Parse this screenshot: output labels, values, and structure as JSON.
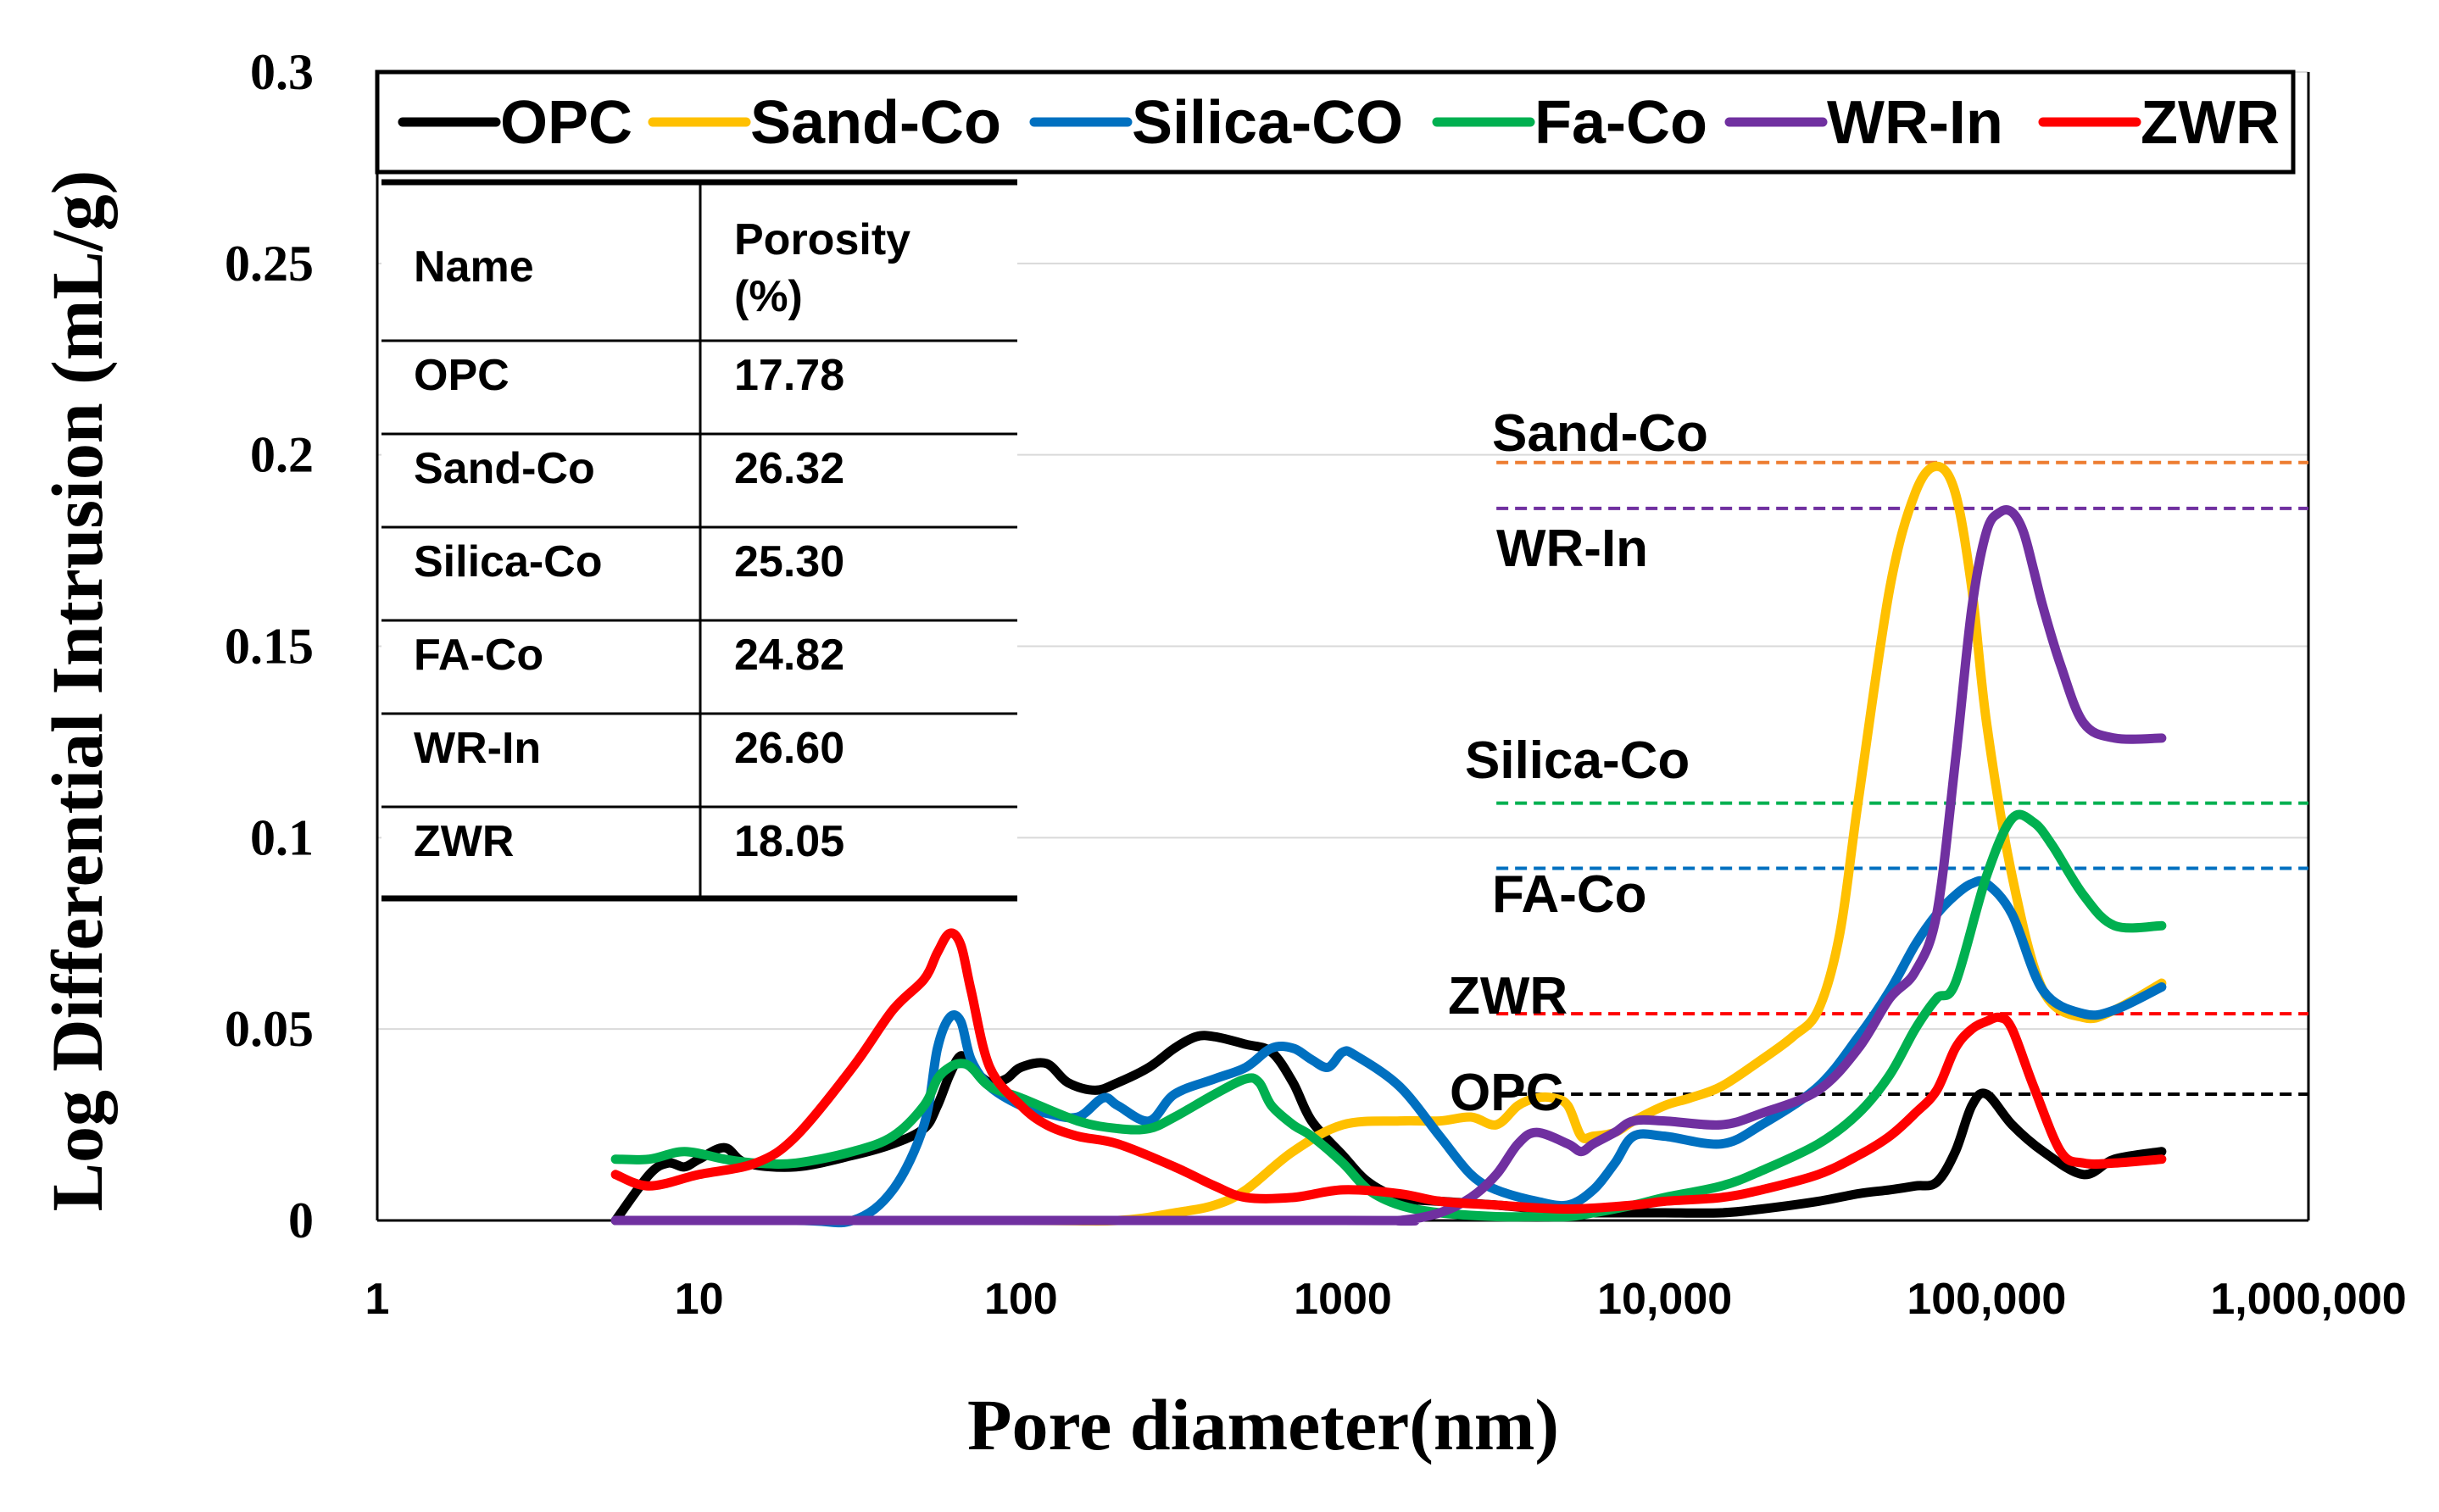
{
  "chart_data": {
    "type": "line",
    "title": "",
    "xlabel": "Pore diameter(nm)",
    "ylabel": "Log Differential Intrusion (mL/g)",
    "xscale": "log",
    "xlim": [
      1,
      1000000
    ],
    "ylim": [
      0,
      0.3
    ],
    "x_ticks": [
      1,
      10,
      100,
      1000,
      10000,
      100000,
      1000000
    ],
    "x_tick_labels": [
      "1",
      "10",
      "100",
      "1000",
      "10,000",
      "100,000",
      "1,000,000"
    ],
    "y_ticks": [
      0,
      0.05,
      0.1,
      0.15,
      0.2,
      0.25,
      0.3
    ],
    "y_tick_labels": [
      "0",
      "0.05",
      "0.1",
      "0.15",
      "0.2",
      "0.25",
      "0.3"
    ],
    "legend_position": "top",
    "series": [
      {
        "name": "OPC",
        "color": "#000000",
        "x": [
          5.5,
          7,
          8,
          9,
          10,
          12,
          14,
          20,
          30,
          40,
          50,
          55,
          60,
          65,
          70,
          80,
          90,
          100,
          120,
          140,
          170,
          200,
          250,
          300,
          350,
          400,
          500,
          600,
          700,
          800,
          1000,
          1200,
          1500,
          2000,
          3000,
          4000,
          5000,
          6000,
          8000,
          10000,
          15000,
          20000,
          30000,
          40000,
          50000,
          60000,
          70000,
          80000,
          90000,
          100000,
          120000,
          150000,
          200000,
          250000,
          350000
        ],
        "y": [
          0.0,
          0.012,
          0.015,
          0.014,
          0.016,
          0.019,
          0.015,
          0.014,
          0.017,
          0.02,
          0.024,
          0.03,
          0.038,
          0.043,
          0.04,
          0.036,
          0.037,
          0.04,
          0.041,
          0.036,
          0.034,
          0.036,
          0.04,
          0.045,
          0.048,
          0.048,
          0.046,
          0.044,
          0.036,
          0.026,
          0.017,
          0.01,
          0.006,
          0.005,
          0.004,
          0.003,
          0.002,
          0.002,
          0.002,
          0.002,
          0.002,
          0.003,
          0.005,
          0.007,
          0.008,
          0.009,
          0.01,
          0.018,
          0.03,
          0.033,
          0.025,
          0.018,
          0.012,
          0.016,
          0.018
        ]
      },
      {
        "name": "Sand-Co",
        "color": "#FFC000",
        "x": [
          5.5,
          100,
          200,
          300,
          400,
          500,
          700,
          1000,
          1500,
          2000,
          2500,
          3000,
          3500,
          4000,
          4500,
          5000,
          5500,
          6000,
          7000,
          8000,
          10000,
          12000,
          15000,
          20000,
          25000,
          30000,
          35000,
          40000,
          50000,
          60000,
          70000,
          80000,
          90000,
          100000,
          120000,
          150000,
          200000,
          250000,
          350000
        ],
        "y": [
          0.0,
          0.0,
          0.0,
          0.002,
          0.004,
          0.008,
          0.018,
          0.025,
          0.026,
          0.026,
          0.027,
          0.025,
          0.03,
          0.032,
          0.032,
          0.03,
          0.022,
          0.022,
          0.023,
          0.026,
          0.03,
          0.032,
          0.035,
          0.042,
          0.048,
          0.055,
          0.075,
          0.11,
          0.165,
          0.19,
          0.197,
          0.19,
          0.165,
          0.13,
          0.09,
          0.06,
          0.053,
          0.055,
          0.062
        ]
      },
      {
        "name": "Silica-CO",
        "color": "#0070C0",
        "x": [
          5.5,
          20,
          30,
          40,
          50,
          55,
          60,
          65,
          70,
          80,
          100,
          120,
          150,
          180,
          200,
          250,
          300,
          400,
          500,
          600,
          700,
          800,
          900,
          1000,
          1100,
          1500,
          2000,
          2500,
          3000,
          4000,
          5000,
          6000,
          7000,
          8000,
          10000,
          15000,
          20000,
          30000,
          40000,
          50000,
          60000,
          70000,
          80000,
          90000,
          100000,
          120000,
          150000,
          200000,
          250000,
          350000
        ],
        "y": [
          0.0,
          0.0,
          0.0,
          0.008,
          0.025,
          0.045,
          0.053,
          0.052,
          0.042,
          0.035,
          0.03,
          0.028,
          0.027,
          0.032,
          0.03,
          0.026,
          0.033,
          0.037,
          0.04,
          0.045,
          0.045,
          0.042,
          0.04,
          0.044,
          0.043,
          0.035,
          0.022,
          0.012,
          0.008,
          0.005,
          0.004,
          0.008,
          0.015,
          0.022,
          0.022,
          0.02,
          0.025,
          0.035,
          0.048,
          0.06,
          0.072,
          0.08,
          0.085,
          0.088,
          0.088,
          0.08,
          0.06,
          0.054,
          0.055,
          0.061
        ]
      },
      {
        "name": "Fa-Co",
        "color": "#00B050",
        "x": [
          5.5,
          7,
          9,
          12,
          15,
          20,
          30,
          40,
          50,
          55,
          60,
          65,
          70,
          80,
          100,
          150,
          200,
          250,
          300,
          400,
          500,
          550,
          600,
          700,
          800,
          1000,
          1200,
          1500,
          2000,
          3000,
          4000,
          5000,
          6000,
          8000,
          10000,
          15000,
          20000,
          30000,
          40000,
          50000,
          60000,
          70000,
          80000,
          100000,
          120000,
          140000,
          160000,
          200000,
          250000,
          350000
        ],
        "y": [
          0.016,
          0.016,
          0.018,
          0.016,
          0.015,
          0.015,
          0.018,
          0.022,
          0.03,
          0.037,
          0.04,
          0.041,
          0.04,
          0.035,
          0.032,
          0.026,
          0.024,
          0.024,
          0.027,
          0.033,
          0.037,
          0.036,
          0.03,
          0.025,
          0.022,
          0.015,
          0.008,
          0.004,
          0.002,
          0.001,
          0.001,
          0.001,
          0.002,
          0.004,
          0.006,
          0.009,
          0.013,
          0.02,
          0.028,
          0.038,
          0.05,
          0.058,
          0.062,
          0.09,
          0.105,
          0.104,
          0.098,
          0.085,
          0.077,
          0.077
        ]
      },
      {
        "name": "WR-In",
        "color": "#7030A0",
        "x": [
          5.5,
          1000,
          1500,
          2000,
          2500,
          3000,
          3500,
          4000,
          5000,
          5500,
          6000,
          7000,
          8000,
          10000,
          15000,
          20000,
          30000,
          40000,
          50000,
          60000,
          70000,
          80000,
          90000,
          100000,
          110000,
          120000,
          130000,
          140000,
          150000,
          170000,
          200000,
          250000,
          350000
        ],
        "y": [
          0.0,
          0.0,
          0.0,
          0.002,
          0.006,
          0.012,
          0.02,
          0.023,
          0.02,
          0.018,
          0.02,
          0.023,
          0.026,
          0.026,
          0.025,
          0.028,
          0.034,
          0.045,
          0.058,
          0.065,
          0.08,
          0.12,
          0.16,
          0.18,
          0.185,
          0.185,
          0.18,
          0.17,
          0.16,
          0.145,
          0.13,
          0.126,
          0.126
        ]
      },
      {
        "name": "ZWR",
        "color": "#FF0000",
        "x": [
          5.5,
          7,
          10,
          15,
          20,
          30,
          40,
          50,
          55,
          60,
          65,
          70,
          80,
          100,
          120,
          150,
          200,
          300,
          400,
          500,
          700,
          1000,
          1500,
          2000,
          3000,
          5000,
          8000,
          10000,
          15000,
          20000,
          30000,
          40000,
          50000,
          60000,
          70000,
          80000,
          90000,
          100000,
          110000,
          120000,
          140000,
          170000,
          200000,
          250000,
          350000
        ],
        "y": [
          0.012,
          0.009,
          0.012,
          0.015,
          0.022,
          0.04,
          0.055,
          0.063,
          0.07,
          0.075,
          0.072,
          0.06,
          0.04,
          0.03,
          0.025,
          0.022,
          0.02,
          0.014,
          0.009,
          0.006,
          0.006,
          0.008,
          0.007,
          0.005,
          0.004,
          0.003,
          0.004,
          0.005,
          0.006,
          0.008,
          0.012,
          0.017,
          0.022,
          0.028,
          0.034,
          0.045,
          0.05,
          0.052,
          0.053,
          0.05,
          0.035,
          0.018,
          0.015,
          0.015,
          0.016
        ]
      }
    ],
    "reference_lines": [
      {
        "label": "Sand-Co",
        "y": 0.198,
        "color": "#ED7D31",
        "x_start": 3000,
        "x_end": 1000000
      },
      {
        "label": "WR-In",
        "y": 0.186,
        "color": "#7030A0",
        "x_start": 3000,
        "x_end": 1000000
      },
      {
        "label": "Silica-Co",
        "y": 0.109,
        "color": "#00B050",
        "x_start": 3000,
        "x_end": 1000000
      },
      {
        "label": "FA-Co",
        "y": 0.092,
        "color": "#0070C0",
        "x_start": 3000,
        "x_end": 1000000
      },
      {
        "label": "ZWR",
        "y": 0.054,
        "color": "#FF0000",
        "x_start": 3000,
        "x_end": 1000000
      },
      {
        "label": "OPC",
        "y": 0.033,
        "color": "#000000",
        "x_start": 3000,
        "x_end": 1000000
      }
    ],
    "table": {
      "headers": [
        "Name",
        "Porosity",
        "(%)"
      ],
      "rows": [
        [
          "OPC",
          "17.78"
        ],
        [
          "Sand-Co",
          "26.32"
        ],
        [
          "Silica-Co",
          "25.30"
        ],
        [
          "FA-Co",
          "24.82"
        ],
        [
          "WR-In",
          "26.60"
        ],
        [
          "ZWR",
          "18.05"
        ]
      ]
    }
  }
}
